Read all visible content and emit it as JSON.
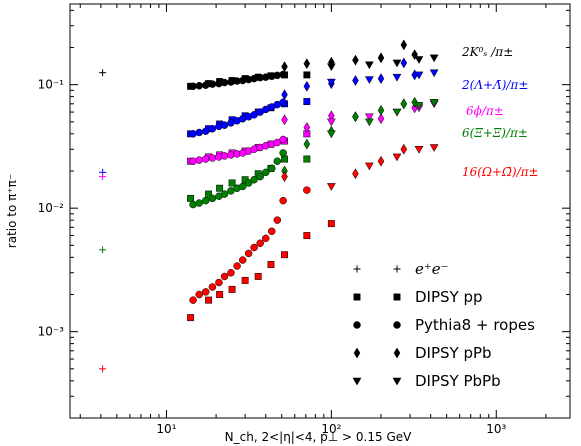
{
  "chart_data": {
    "type": "scatter",
    "title": "",
    "xlabel": "N_ch, 2<|η|<4, p⊥ > 0.15 GeV",
    "ylabel": "ratio to π⁺π⁻",
    "xscale": "log",
    "yscale": "log",
    "xlim": [
      2.6,
      2800
    ],
    "ylim": [
      0.0002,
      0.45
    ],
    "x_ticks": [
      {
        "value": 10,
        "label": "10¹"
      },
      {
        "value": 100,
        "label": "10²"
      },
      {
        "value": 1000,
        "label": "10³"
      }
    ],
    "y_ticks": [
      {
        "value": 0.001,
        "label": "10⁻³"
      },
      {
        "value": 0.01,
        "label": "10⁻²"
      },
      {
        "value": 0.1,
        "label": "10⁻¹"
      }
    ],
    "grid": false,
    "legend_position": "bottom-right",
    "legend": [
      "e⁺e⁻",
      "DIPSY pp",
      "Pythia8 + ropes",
      "DIPSY pPb",
      "DIPSY PbPb"
    ],
    "marker_for_collision_system": {
      "e+e-": "plus",
      "DIPSY pp": "square",
      "Pythia8 + ropes": "circle",
      "DIPSY pPb": "diamond",
      "DIPSY PbPb": "triangle-down"
    },
    "series": [
      {
        "name": "2K⁰ₛ /π±",
        "color": "#000000",
        "ee": [
          [
            4.1,
            0.125
          ]
        ],
        "pp": [
          [
            14,
            0.097
          ],
          [
            18,
            0.102
          ],
          [
            21,
            0.106
          ],
          [
            25,
            0.108
          ],
          [
            30,
            0.112
          ],
          [
            36,
            0.115
          ],
          [
            43,
            0.118
          ],
          [
            52,
            0.12
          ],
          [
            71,
            0.12
          ]
        ],
        "ropes": [
          [
            14.5,
            0.097
          ],
          [
            15.8,
            0.098
          ],
          [
            17.3,
            0.099
          ],
          [
            19,
            0.101
          ],
          [
            20.8,
            0.102
          ],
          [
            22.5,
            0.104
          ],
          [
            24.6,
            0.105
          ],
          [
            26.8,
            0.107
          ],
          [
            29,
            0.108
          ],
          [
            31.5,
            0.11
          ],
          [
            34,
            0.112
          ],
          [
            37,
            0.114
          ],
          [
            40,
            0.115
          ],
          [
            43.5,
            0.117
          ],
          [
            47,
            0.119
          ],
          [
            51,
            0.121
          ]
        ],
        "ppb": [
          [
            52,
            0.14
          ],
          [
            71,
            0.148
          ],
          [
            100,
            0.152
          ],
          [
            140,
            0.158
          ],
          [
            200,
            0.165
          ],
          [
            275,
            0.21
          ],
          [
            320,
            0.175
          ]
        ],
        "pbpb": [
          [
            100,
            0.14
          ],
          [
            170,
            0.145
          ],
          [
            250,
            0.15
          ],
          [
            340,
            0.16
          ],
          [
            420,
            0.165
          ]
        ]
      },
      {
        "name": "2(Λ+Λ̄)/π±",
        "color": "#0000ff",
        "ee": [
          [
            4.1,
            0.0195
          ]
        ],
        "pp": [
          [
            14,
            0.04
          ],
          [
            18,
            0.044
          ],
          [
            21,
            0.048
          ],
          [
            25,
            0.052
          ],
          [
            30,
            0.056
          ],
          [
            36,
            0.06
          ],
          [
            43,
            0.065
          ],
          [
            52,
            0.07
          ],
          [
            71,
            0.073
          ]
        ],
        "ropes": [
          [
            14.5,
            0.04
          ],
          [
            15.8,
            0.041
          ],
          [
            17.3,
            0.042
          ],
          [
            19,
            0.044
          ],
          [
            20.8,
            0.046
          ],
          [
            22.5,
            0.047
          ],
          [
            24.6,
            0.049
          ],
          [
            26.8,
            0.051
          ],
          [
            29,
            0.053
          ],
          [
            31.5,
            0.055
          ],
          [
            34,
            0.057
          ],
          [
            37,
            0.06
          ],
          [
            40,
            0.063
          ],
          [
            43.5,
            0.066
          ],
          [
            47,
            0.069
          ],
          [
            51,
            0.072
          ]
        ],
        "ppb": [
          [
            52,
            0.083
          ],
          [
            71,
            0.097
          ],
          [
            100,
            0.102
          ],
          [
            140,
            0.108
          ],
          [
            200,
            0.112
          ],
          [
            275,
            0.15
          ],
          [
            320,
            0.12
          ]
        ],
        "pbpb": [
          [
            100,
            0.105
          ],
          [
            170,
            0.11
          ],
          [
            250,
            0.115
          ],
          [
            340,
            0.12
          ],
          [
            420,
            0.125
          ]
        ]
      },
      {
        "name": "6ϕ/π±",
        "color": "#ff00ff",
        "ee": [
          [
            4.1,
            0.018
          ]
        ],
        "pp": [
          [
            14,
            0.024
          ],
          [
            18,
            0.026
          ],
          [
            21,
            0.027
          ],
          [
            25,
            0.028
          ],
          [
            30,
            0.029
          ],
          [
            36,
            0.031
          ],
          [
            43,
            0.033
          ],
          [
            52,
            0.035
          ],
          [
            71,
            0.04
          ]
        ],
        "ropes": [
          [
            14.5,
            0.024
          ],
          [
            15.8,
            0.0245
          ],
          [
            17.3,
            0.025
          ],
          [
            19,
            0.0255
          ],
          [
            20.8,
            0.026
          ],
          [
            22.5,
            0.0265
          ],
          [
            24.6,
            0.027
          ],
          [
            26.8,
            0.0275
          ],
          [
            29,
            0.028
          ],
          [
            31.5,
            0.029
          ],
          [
            34,
            0.03
          ],
          [
            37,
            0.031
          ],
          [
            40,
            0.032
          ],
          [
            43.5,
            0.033
          ],
          [
            47,
            0.034
          ],
          [
            51,
            0.036
          ]
        ],
        "ppb": [
          [
            52,
            0.052
          ],
          [
            71,
            0.045
          ],
          [
            100,
            0.056
          ],
          [
            140,
            0.055
          ],
          [
            200,
            0.053
          ],
          [
            275,
            0.07
          ],
          [
            320,
            0.065
          ]
        ],
        "pbpb": [
          [
            100,
            0.05
          ],
          [
            170,
            0.055
          ],
          [
            250,
            0.06
          ],
          [
            340,
            0.065
          ],
          [
            420,
            0.07
          ]
        ]
      },
      {
        "name": "6(Ξ+Ξ̄)/π±",
        "color": "#008000",
        "ee": [
          [
            4.1,
            0.0046
          ]
        ],
        "pp": [
          [
            14,
            0.012
          ],
          [
            18,
            0.013
          ],
          [
            21,
            0.0145
          ],
          [
            25,
            0.016
          ],
          [
            30,
            0.017
          ],
          [
            36,
            0.019
          ],
          [
            43,
            0.021
          ],
          [
            52,
            0.025
          ],
          [
            71,
            0.025
          ]
        ],
        "ropes": [
          [
            14.5,
            0.0107
          ],
          [
            15.8,
            0.011
          ],
          [
            17.3,
            0.0115
          ],
          [
            19,
            0.012
          ],
          [
            20.8,
            0.0125
          ],
          [
            22.5,
            0.013
          ],
          [
            24.6,
            0.0138
          ],
          [
            26.8,
            0.0145
          ],
          [
            29,
            0.015
          ],
          [
            31.5,
            0.016
          ],
          [
            34,
            0.017
          ],
          [
            37,
            0.018
          ],
          [
            40,
            0.0195
          ],
          [
            43.5,
            0.021
          ],
          [
            47,
            0.024
          ],
          [
            51,
            0.028
          ]
        ],
        "ppb": [
          [
            52,
            0.02
          ],
          [
            71,
            0.033
          ],
          [
            100,
            0.042
          ],
          [
            140,
            0.055
          ],
          [
            200,
            0.062
          ],
          [
            275,
            0.07
          ],
          [
            320,
            0.072
          ]
        ],
        "pbpb": [
          [
            100,
            0.04
          ],
          [
            170,
            0.05
          ],
          [
            250,
            0.06
          ],
          [
            340,
            0.068
          ],
          [
            420,
            0.072
          ]
        ]
      },
      {
        "name": "16(Ω+Ω̄)/π±",
        "color": "#ff0000",
        "ee": [
          [
            4.1,
            0.0005
          ]
        ],
        "pp": [
          [
            14,
            0.0013
          ],
          [
            18,
            0.0018
          ],
          [
            21,
            0.002
          ],
          [
            25,
            0.0022
          ],
          [
            30,
            0.0026
          ],
          [
            36,
            0.0028
          ],
          [
            43,
            0.0035
          ],
          [
            52,
            0.0042
          ],
          [
            71,
            0.006
          ],
          [
            100,
            0.0075
          ]
        ],
        "ropes": [
          [
            14.5,
            0.0018
          ],
          [
            15.8,
            0.002
          ],
          [
            17.3,
            0.0021
          ],
          [
            19,
            0.0023
          ],
          [
            20.8,
            0.0025
          ],
          [
            22.5,
            0.0028
          ],
          [
            24.6,
            0.003
          ],
          [
            26.8,
            0.0034
          ],
          [
            29,
            0.0038
          ],
          [
            31.5,
            0.0043
          ],
          [
            34,
            0.0048
          ],
          [
            37,
            0.0052
          ],
          [
            40,
            0.0057
          ],
          [
            43.5,
            0.0065
          ],
          [
            47,
            0.008
          ],
          [
            51,
            0.0115
          ],
          [
            71,
            0.014
          ]
        ],
        "ppb": [
          [
            52,
            0.018
          ],
          [
            140,
            0.019
          ],
          [
            200,
            0.024
          ],
          [
            275,
            0.03
          ]
        ],
        "pbpb": [
          [
            100,
            0.015
          ],
          [
            170,
            0.022
          ],
          [
            250,
            0.026
          ],
          [
            340,
            0.03
          ],
          [
            420,
            0.031
          ]
        ]
      }
    ]
  }
}
